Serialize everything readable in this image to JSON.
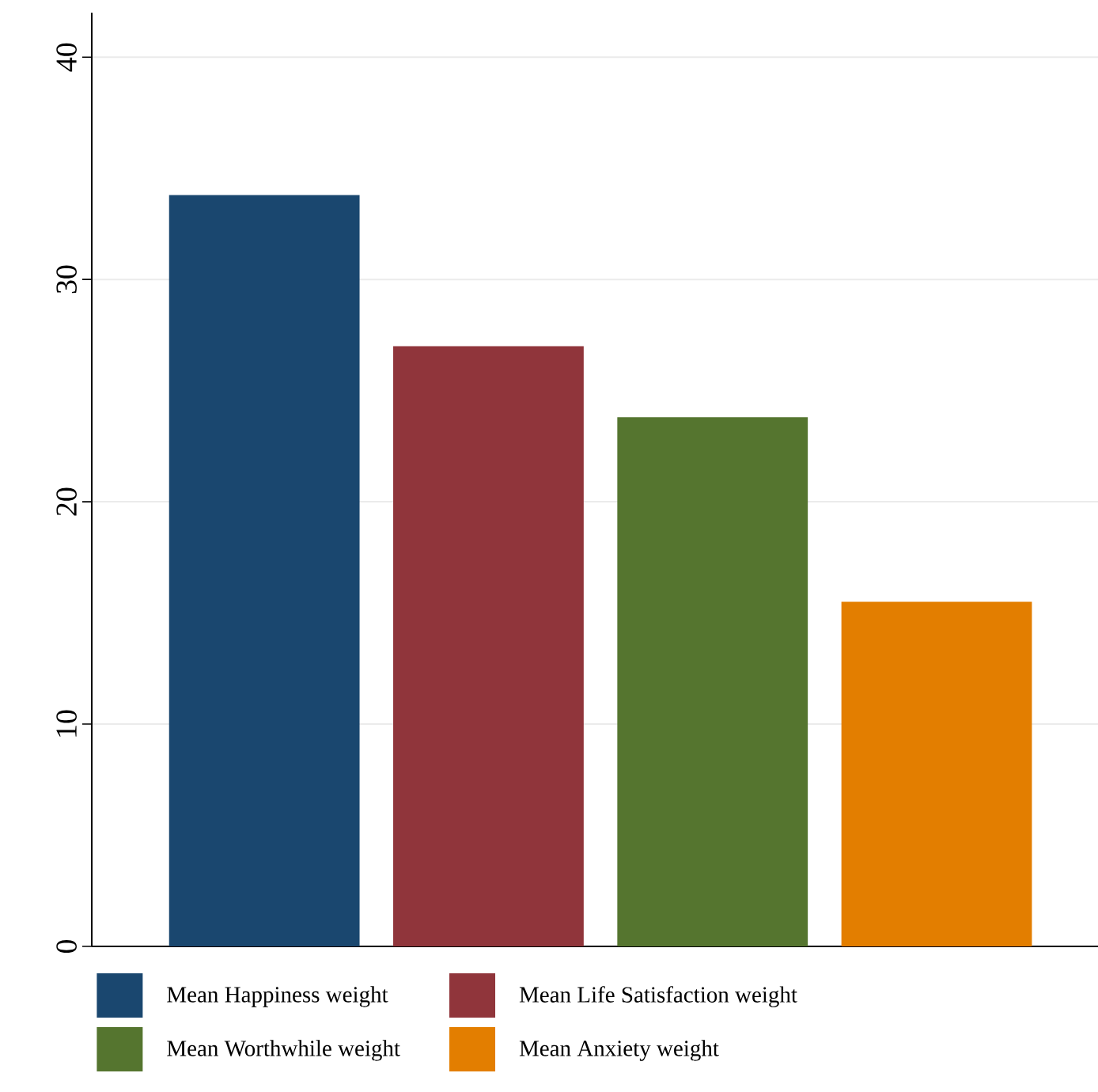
{
  "chart_data": {
    "type": "bar",
    "categories": [
      null
    ],
    "series": [
      {
        "name": "Mean Happiness weight",
        "color": "#1a476f",
        "values": [
          33.8
        ]
      },
      {
        "name": "Mean Life Satisfaction weight",
        "color": "#90353b",
        "values": [
          27.0
        ]
      },
      {
        "name": "Mean Worthwhile weight",
        "color": "#55752f",
        "values": [
          23.8
        ]
      },
      {
        "name": "Mean Anxiety weight",
        "color": "#e37e00",
        "values": [
          15.5
        ]
      }
    ],
    "ylim": [
      0,
      42
    ],
    "yticks": [
      0,
      10,
      20,
      30,
      40
    ],
    "grid": "y",
    "legend": "bottom",
    "tick_labels": "y"
  }
}
